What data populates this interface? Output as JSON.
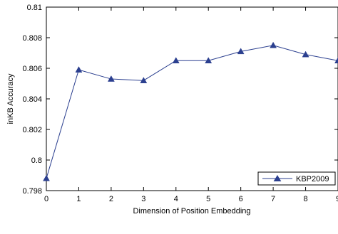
{
  "chart_data": {
    "type": "line",
    "xlabel": "Dimension of Position Embedding",
    "ylabel": "inKB Accuracy",
    "xlim": [
      0,
      9
    ],
    "ylim": [
      0.798,
      0.81
    ],
    "x_ticks": [
      "0",
      "1",
      "2",
      "3",
      "4",
      "5",
      "6",
      "7",
      "8",
      "9"
    ],
    "y_ticks": [
      "0.798",
      "0.8",
      "0.802",
      "0.804",
      "0.806",
      "0.808",
      "0.81"
    ],
    "grid": false,
    "legend_position": "bottom-right",
    "series": [
      {
        "name": "KBP2009",
        "color": "#2b3f8f",
        "marker": "triangle",
        "x": [
          0,
          1,
          2,
          3,
          4,
          5,
          6,
          7,
          8,
          9
        ],
        "y": [
          0.7988,
          0.8059,
          0.8053,
          0.8052,
          0.8065,
          0.8065,
          0.8071,
          0.8075,
          0.8069,
          0.8065
        ]
      }
    ]
  }
}
